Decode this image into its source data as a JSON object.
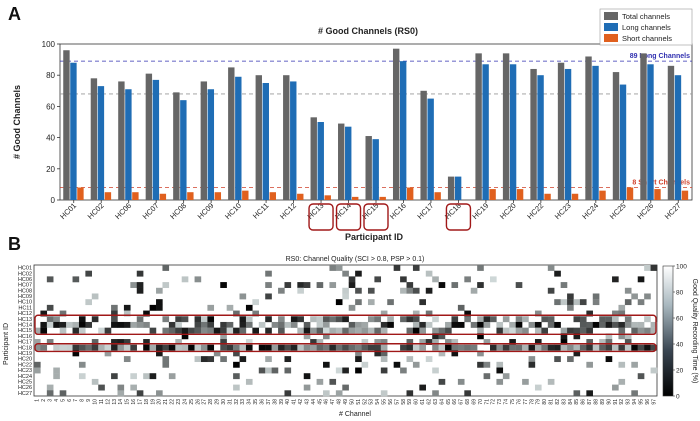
{
  "panels": {
    "a": "A",
    "b": "B"
  },
  "chart_data": [
    {
      "type": "bar",
      "title": "# Good Channels (RS0)",
      "xlabel": "Participant ID",
      "ylabel": "# Good Channels",
      "ylim": [
        0,
        100
      ],
      "yticks": [
        0,
        20,
        40,
        60,
        80,
        100
      ],
      "categories": [
        "HC01",
        "HC02",
        "HC06",
        "HC07",
        "HC08",
        "HC09",
        "HC10",
        "HC11",
        "HC12",
        "HC13",
        "HC14",
        "HC15",
        "HC16",
        "HC17",
        "HC18",
        "HC19",
        "HC20",
        "HC22",
        "HC23",
        "HC24",
        "HC25",
        "HC26",
        "HC27"
      ],
      "highlighted": [
        "HC13",
        "HC14",
        "HC15",
        "HC18"
      ],
      "series": [
        {
          "name": "Total channels",
          "color": "#666666",
          "values": [
            96,
            78,
            76,
            81,
            69,
            76,
            85,
            80,
            80,
            53,
            49,
            41,
            97,
            70,
            15,
            94,
            94,
            84,
            88,
            92,
            82,
            94,
            86
          ]
        },
        {
          "name": "Long channels",
          "color": "#1f6db5",
          "values": [
            88,
            73,
            71,
            77,
            64,
            71,
            79,
            75,
            76,
            50,
            47,
            39,
            89,
            65,
            15,
            87,
            87,
            80,
            84,
            86,
            74,
            87,
            80
          ]
        },
        {
          "name": "Short channels",
          "color": "#e0601e",
          "values": [
            8,
            5,
            5,
            4,
            5,
            5,
            6,
            5,
            4,
            3,
            2,
            2,
            8,
            5,
            0,
            7,
            7,
            4,
            4,
            6,
            8,
            7,
            6
          ]
        }
      ],
      "reference_lines": [
        {
          "value": 89,
          "label": "89 Long Channels",
          "color": "#3030b0"
        },
        {
          "value": 68,
          "label": "",
          "color": "#999999"
        },
        {
          "value": 8,
          "label": "8 Short Channels",
          "color": "#d0402a"
        }
      ],
      "legend_position": "top-right"
    },
    {
      "type": "heatmap",
      "title": "RS0: Channel Quality (SCI > 0.8, PSP > 0.1)",
      "xlabel": "# Channel",
      "ylabel": "Participant ID",
      "rows": [
        "HC01",
        "HC02",
        "HC06",
        "HC07",
        "HC08",
        "HC09",
        "HC10",
        "HC11",
        "HC12",
        "HC13",
        "HC14",
        "HC15",
        "HC16",
        "HC17",
        "HC18",
        "HC19",
        "HC20",
        "HC22",
        "HC23",
        "HC24",
        "HC25",
        "HC26",
        "HC27"
      ],
      "columns": [
        "1",
        "2",
        "3",
        "4",
        "5",
        "6",
        "7",
        "8",
        "9",
        "10",
        "11",
        "12",
        "13",
        "14",
        "15",
        "16",
        "17",
        "18",
        "19",
        "20",
        "21",
        "22",
        "23",
        "24",
        "25",
        "26",
        "27",
        "28",
        "29",
        "30",
        "31",
        "32",
        "33",
        "34",
        "35",
        "36",
        "37",
        "38",
        "39",
        "40",
        "41",
        "42",
        "43",
        "44",
        "45",
        "46",
        "47",
        "48",
        "49",
        "50",
        "51",
        "52",
        "53",
        "54",
        "55",
        "56",
        "57",
        "58",
        "59",
        "60",
        "61",
        "62",
        "63",
        "64",
        "65",
        "66",
        "67",
        "68",
        "69",
        "70",
        "71",
        "72",
        "73",
        "74",
        "75",
        "76",
        "77",
        "78",
        "79",
        "80",
        "81",
        "82",
        "83",
        "84",
        "85",
        "86",
        "87",
        "88",
        "89",
        "90",
        "91",
        "92",
        "93",
        "94",
        "95",
        "96",
        "97"
      ],
      "highlighted_rows": [
        [
          "HC13",
          "HC15"
        ],
        [
          "HC18",
          "HC18"
        ]
      ],
      "colorbar": {
        "label": "Good Quality Recording Time (%)",
        "min": 0,
        "max": 100,
        "ticks": [
          0,
          20,
          40,
          60,
          80,
          100
        ]
      },
      "scale": "100 = white (good), 0 = black (bad)"
    }
  ]
}
